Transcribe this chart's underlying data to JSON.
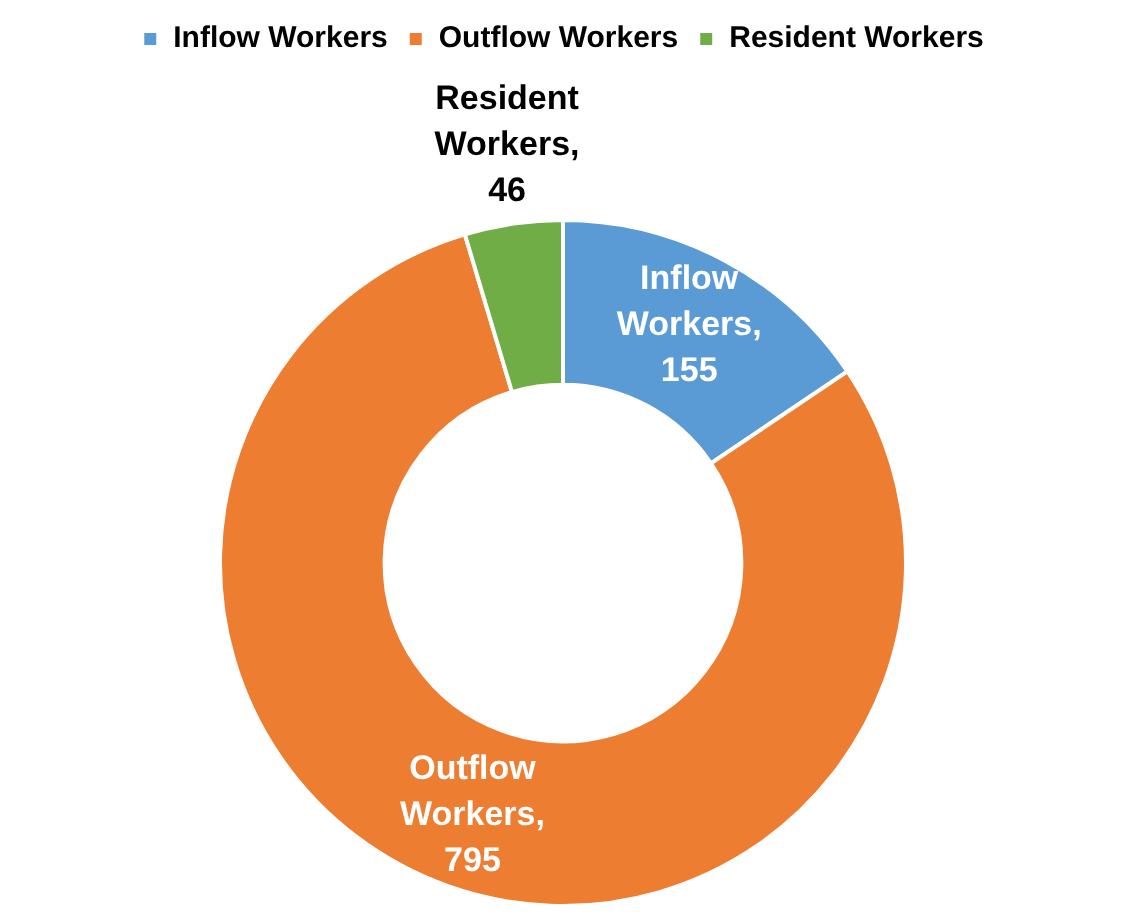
{
  "chart_data": {
    "type": "donut",
    "categories": [
      "Inflow Workers",
      "Outflow Workers",
      "Resident Workers"
    ],
    "values": [
      155,
      795,
      46
    ],
    "value_labels": [
      "Inflow Workers, 155",
      "Outflow Workers, 795",
      "Resident Workers, 46"
    ],
    "colors": [
      "#5b9bd5",
      "#ed7d31",
      "#70ad47"
    ],
    "legend": "top"
  }
}
